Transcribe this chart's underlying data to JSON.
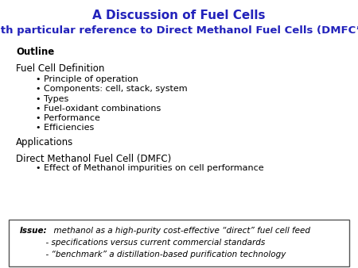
{
  "title_line1": "A Discussion of Fuel Cells",
  "title_line2": "with particular reference to Direct Methanol Fuel Cells (DMFC’s)",
  "title_color": "#2222BB",
  "title_fontsize": 11,
  "subtitle_fontsize": 9.5,
  "background_color": "#ffffff",
  "outline_label": "Outline",
  "sections": [
    {
      "text": "Fuel Cell Definition",
      "indent": 0.045,
      "fontsize": 8.5
    },
    {
      "text": "• Principle of operation",
      "indent": 0.1,
      "fontsize": 8.0
    },
    {
      "text": "• Components: cell, stack, system",
      "indent": 0.1,
      "fontsize": 8.0
    },
    {
      "text": "• Types",
      "indent": 0.1,
      "fontsize": 8.0
    },
    {
      "text": "• Fuel-oxidant combinations",
      "indent": 0.1,
      "fontsize": 8.0
    },
    {
      "text": "• Performance",
      "indent": 0.1,
      "fontsize": 8.0
    },
    {
      "text": "• Efficiencies",
      "indent": 0.1,
      "fontsize": 8.0
    },
    {
      "text": "Applications",
      "indent": 0.045,
      "fontsize": 8.5
    },
    {
      "text": "",
      "indent": 0.045,
      "fontsize": 8.5
    },
    {
      "text": "Direct Methanol Fuel Cell (DMFC)",
      "indent": 0.045,
      "fontsize": 8.5
    },
    {
      "text": "• Effect of Methanol impurities on cell performance",
      "indent": 0.1,
      "fontsize": 8.0
    }
  ],
  "issue_box": {
    "line1_bold": "Issue:",
    "line1_italic": "  methanol as a high-purity cost-effective “direct” fuel cell feed",
    "line2": "          - specifications versus current commercial standards",
    "line3": "          - “benchmark” a distillation-based purification technology",
    "fontsize": 7.5
  }
}
